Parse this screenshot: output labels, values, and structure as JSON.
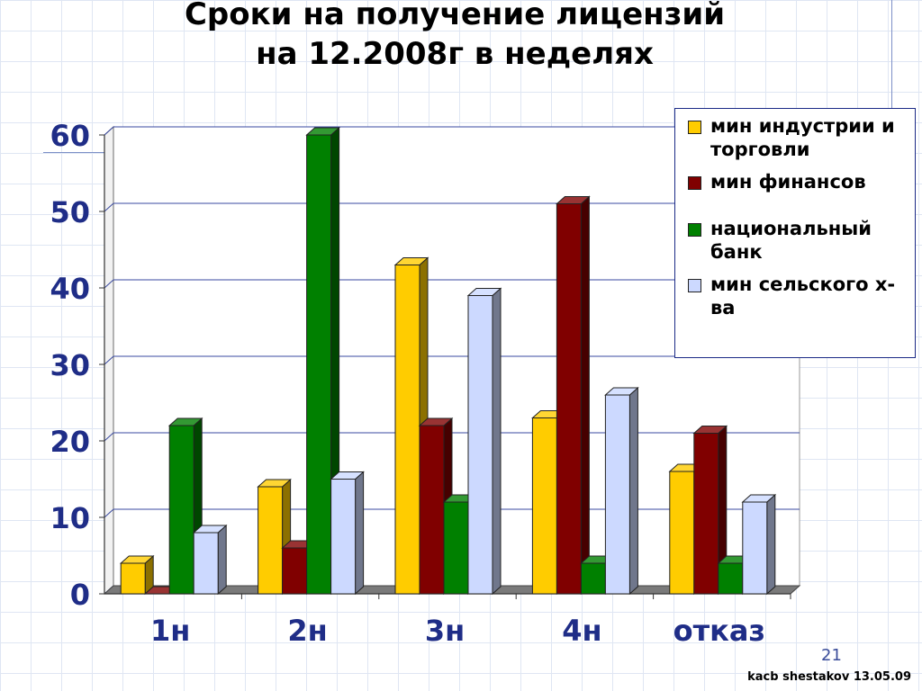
{
  "slide": {
    "title_line1": "Сроки на получение лицензий",
    "title_line2": "на 12.2008г  в неделях",
    "page_number": "21",
    "credit": "kacb shestakov 13.05.09"
  },
  "chart_data": {
    "type": "bar",
    "categories": [
      "1н",
      "2н",
      "3н",
      "4н",
      "отказ"
    ],
    "ylim": [
      0,
      60
    ],
    "yticks": [
      "0",
      "10",
      "20",
      "30",
      "40",
      "50",
      "60"
    ],
    "series": [
      {
        "name": "мин индустрии и торговли",
        "color": "#ffcc00",
        "values": [
          4,
          14,
          43,
          23,
          16
        ]
      },
      {
        "name": "мин финансов",
        "color": "#800000",
        "values": [
          0,
          6,
          22,
          51,
          21
        ]
      },
      {
        "name": "национальный банк",
        "color": "#008000",
        "values": [
          22,
          60,
          12,
          4,
          4
        ]
      },
      {
        "name": "мин сельского х-ва",
        "color": "#ccd9ff",
        "values": [
          8,
          15,
          39,
          26,
          12
        ]
      }
    ],
    "legend_position": "right",
    "grid": true,
    "style": "3d-clustered-columns"
  }
}
